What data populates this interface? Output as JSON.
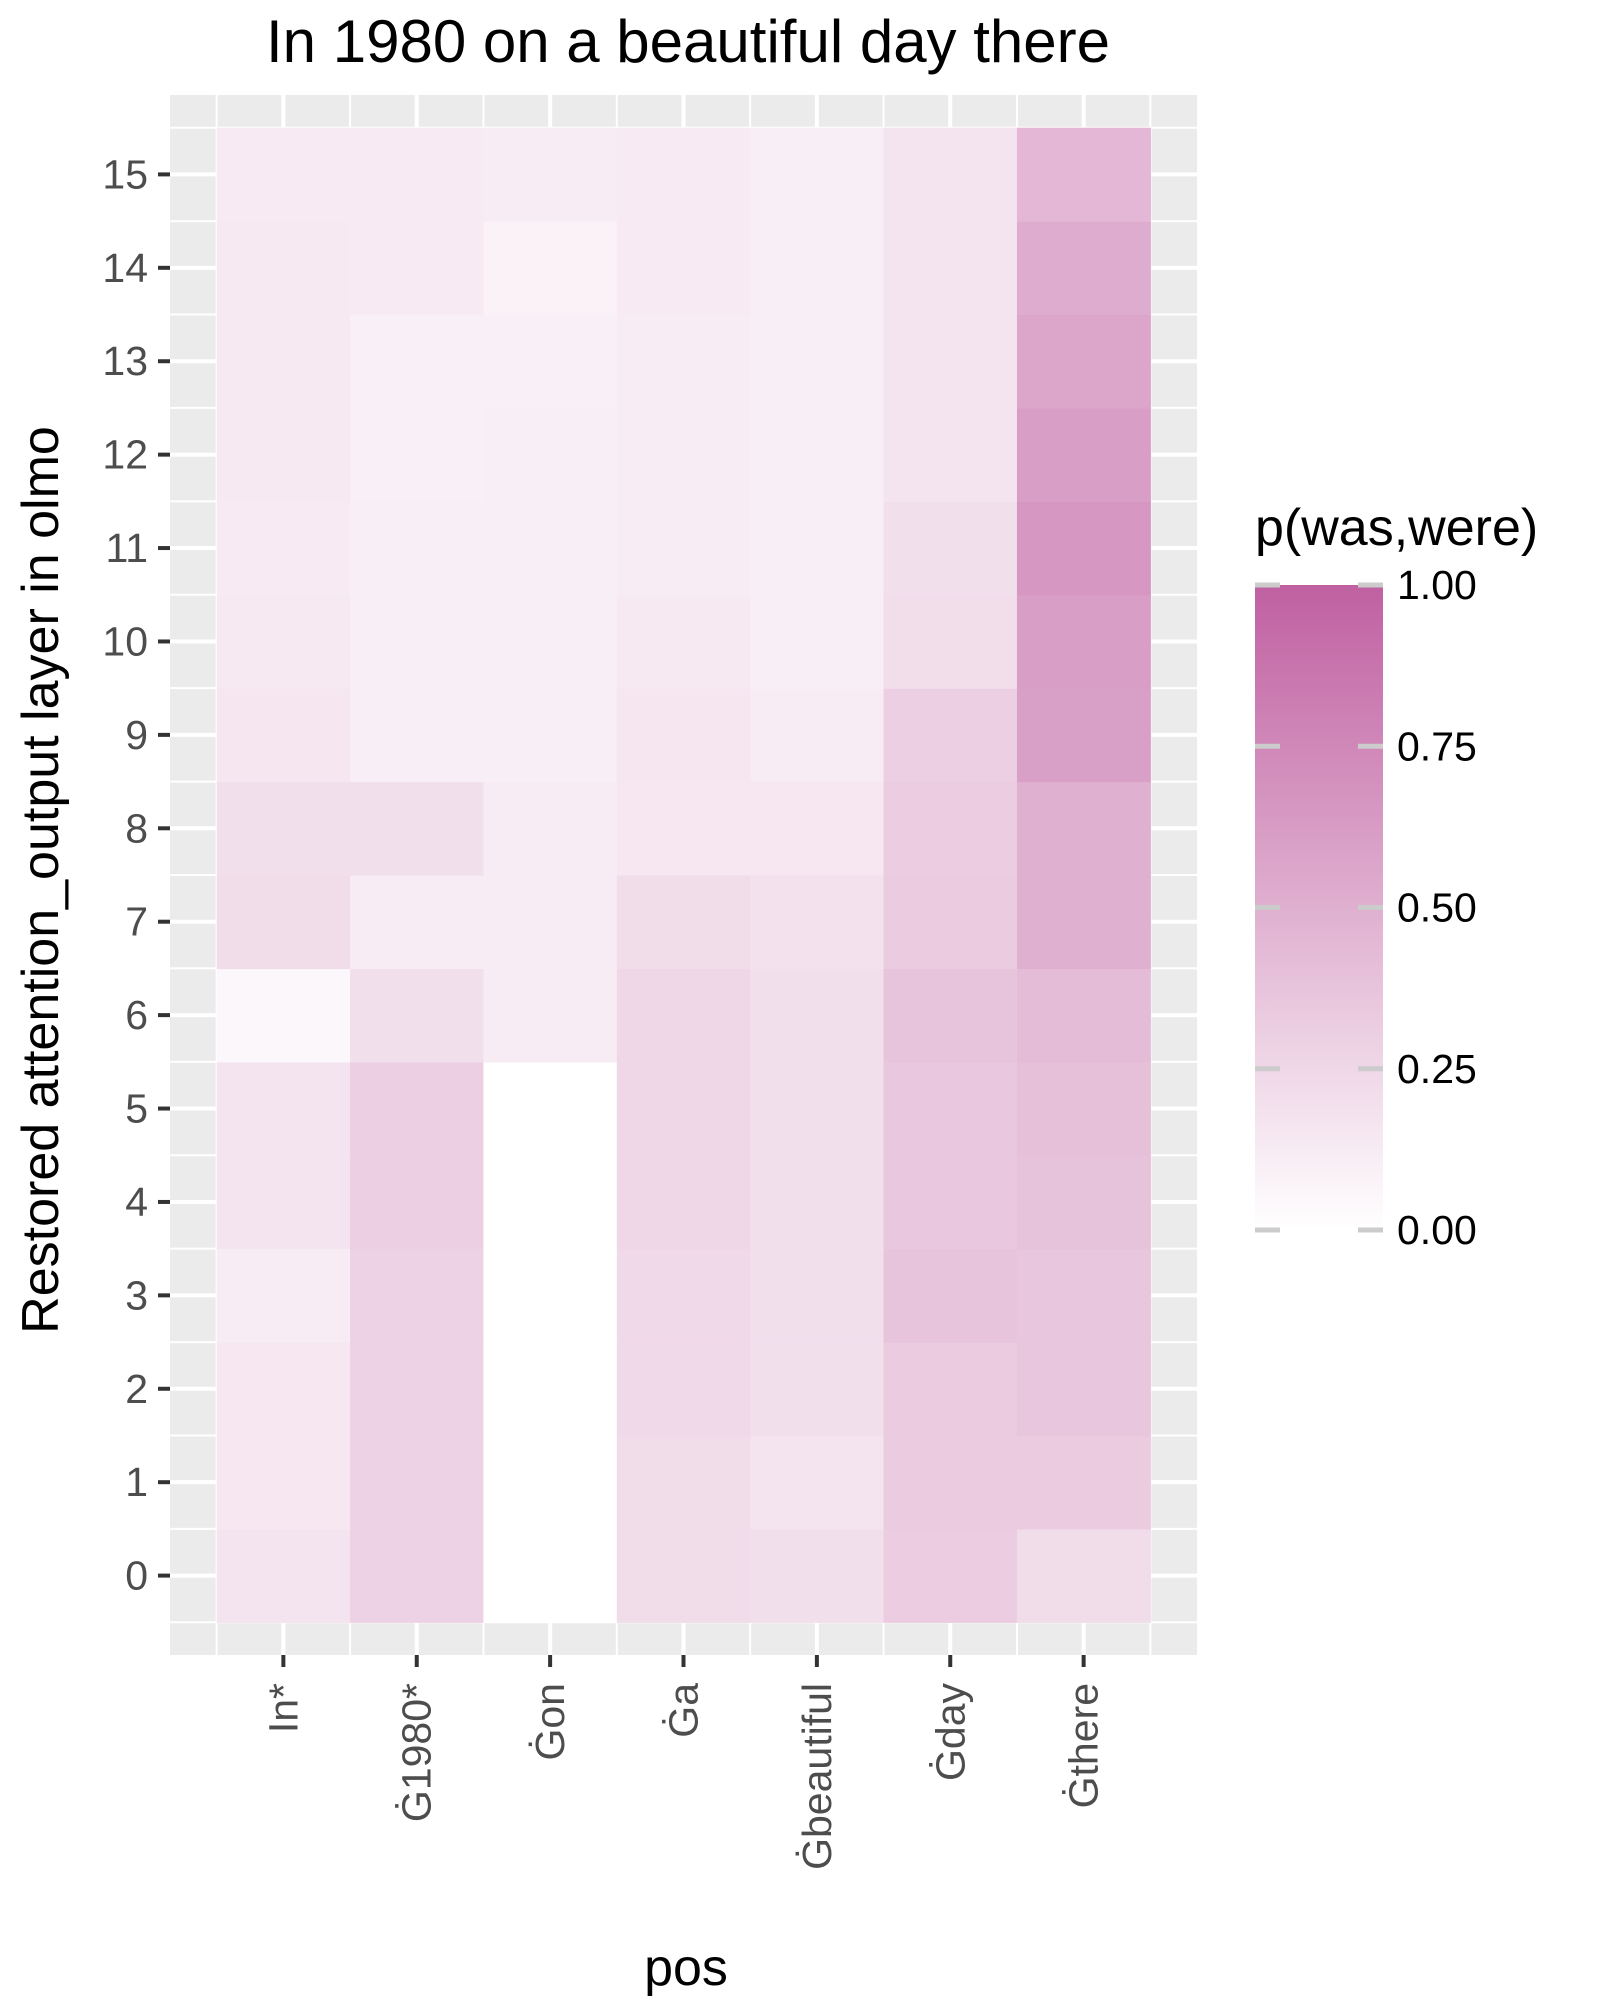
{
  "chart_data": {
    "type": "heatmap",
    "title": "In 1980 on a beautiful day there",
    "xlabel": "pos",
    "ylabel": "Restored attention_output layer in olmo",
    "x_categories": [
      "In*",
      "Ġ1980*",
      "Ġon",
      "Ġa",
      "Ġbeautiful",
      "Ġday",
      "Ġthere"
    ],
    "y_categories": [
      0,
      1,
      2,
      3,
      4,
      5,
      6,
      7,
      8,
      9,
      10,
      11,
      12,
      13,
      14,
      15
    ],
    "values": [
      [
        0.17,
        0.28,
        0.0,
        0.22,
        0.2,
        0.32,
        0.22
      ],
      [
        0.15,
        0.28,
        0.0,
        0.22,
        0.17,
        0.33,
        0.33
      ],
      [
        0.15,
        0.28,
        0.0,
        0.24,
        0.2,
        0.33,
        0.36
      ],
      [
        0.12,
        0.28,
        0.0,
        0.24,
        0.2,
        0.37,
        0.36
      ],
      [
        0.17,
        0.3,
        0.0,
        0.25,
        0.2,
        0.35,
        0.38
      ],
      [
        0.17,
        0.3,
        0.0,
        0.25,
        0.2,
        0.35,
        0.4
      ],
      [
        0.05,
        0.2,
        0.12,
        0.25,
        0.2,
        0.37,
        0.42
      ],
      [
        0.22,
        0.12,
        0.12,
        0.22,
        0.19,
        0.33,
        0.5
      ],
      [
        0.2,
        0.2,
        0.12,
        0.15,
        0.15,
        0.32,
        0.5
      ],
      [
        0.16,
        0.11,
        0.11,
        0.16,
        0.12,
        0.3,
        0.6
      ],
      [
        0.14,
        0.11,
        0.11,
        0.14,
        0.11,
        0.21,
        0.61
      ],
      [
        0.13,
        0.11,
        0.11,
        0.12,
        0.11,
        0.2,
        0.65
      ],
      [
        0.14,
        0.1,
        0.11,
        0.12,
        0.11,
        0.17,
        0.61
      ],
      [
        0.14,
        0.1,
        0.1,
        0.12,
        0.11,
        0.17,
        0.56
      ],
      [
        0.14,
        0.13,
        0.08,
        0.13,
        0.11,
        0.17,
        0.52
      ],
      [
        0.13,
        0.13,
        0.12,
        0.13,
        0.11,
        0.17,
        0.45
      ]
    ],
    "legend": {
      "title": "p(was,were)",
      "ticks": [
        "0.00",
        "0.25",
        "0.50",
        "0.75",
        "1.00"
      ],
      "tick_values": [
        0,
        0.25,
        0.5,
        0.75,
        1.0
      ],
      "range": [
        0,
        1
      ],
      "color_low": "#ffffff",
      "color_high": "#c060a1",
      "placement": "right"
    },
    "panel_background": "#ebebeb",
    "grid": true
  }
}
